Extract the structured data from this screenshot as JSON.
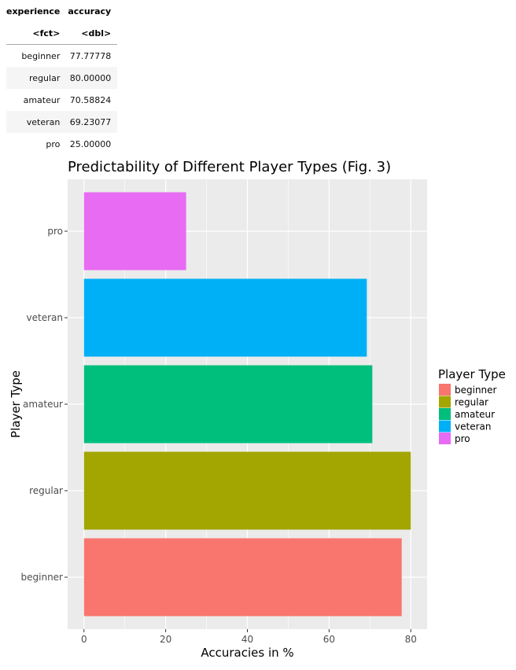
{
  "table": {
    "headers": [
      "experience",
      "accuracy"
    ],
    "types": [
      "<fct>",
      "<dbl>"
    ],
    "rows": [
      [
        "beginner",
        "77.77778"
      ],
      [
        "regular",
        "80.00000"
      ],
      [
        "amateur",
        "70.58824"
      ],
      [
        "veteran",
        "69.23077"
      ],
      [
        "pro",
        "25.00000"
      ]
    ]
  },
  "chart_data": {
    "type": "bar",
    "orientation": "horizontal",
    "title": "Predictability of Different Player Types (Fig. 3)",
    "xlabel": "Accuracies in %",
    "ylabel": "Player Type",
    "categories": [
      "beginner",
      "regular",
      "amateur",
      "veteran",
      "pro"
    ],
    "values": [
      77.77778,
      80.0,
      70.58824,
      69.23077,
      25.0
    ],
    "colors": [
      "#F8766D",
      "#A3A500",
      "#00BF7D",
      "#00B0F6",
      "#E76BF3"
    ],
    "xlim": [
      -4,
      84
    ],
    "xticks": [
      0,
      20,
      40,
      60,
      80
    ],
    "grid": true,
    "panel_background": "#EBEBEB",
    "legend": {
      "title": "Player Type",
      "position": "right",
      "entries": [
        "beginner",
        "regular",
        "amateur",
        "veteran",
        "pro"
      ]
    }
  }
}
